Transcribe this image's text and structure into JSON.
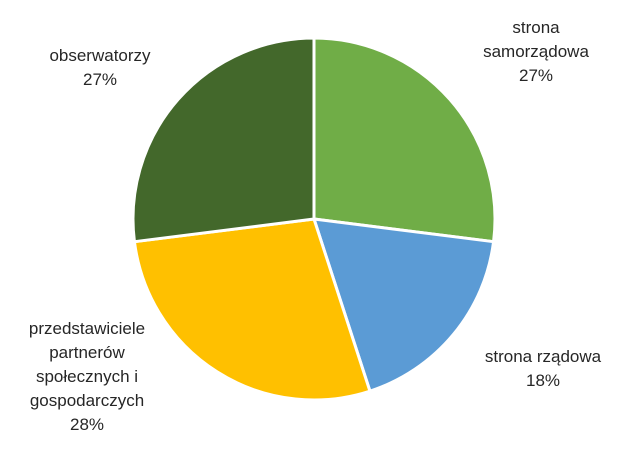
{
  "chart_data": {
    "type": "pie",
    "title": "",
    "slices": [
      {
        "label_lines": [
          "strona",
          "samorządowa"
        ],
        "value_text": "27%",
        "value": 27,
        "color": "#70ad47"
      },
      {
        "label_lines": [
          "strona rządowa"
        ],
        "value_text": "18%",
        "value": 18,
        "color": "#5b9bd5"
      },
      {
        "label_lines": [
          "przedstawiciele",
          "partnerów",
          "społecznych i",
          "gospodarczych"
        ],
        "value_text": "28%",
        "value": 28,
        "color": "#ffc000"
      },
      {
        "label_lines": [
          "obserwatorzy"
        ],
        "value_text": "27%",
        "value": 27,
        "color": "#43682b"
      }
    ]
  }
}
